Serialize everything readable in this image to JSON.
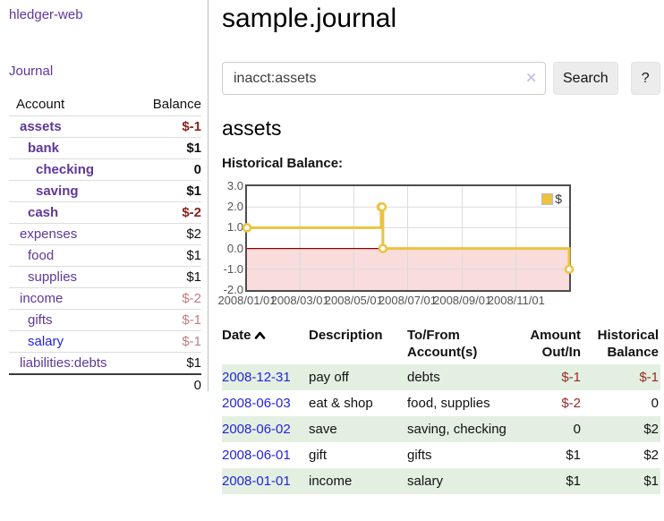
{
  "colors": {
    "link_purple": "#5f3799",
    "link_blue": "#2424dd",
    "negative_strong": "#8f1d1d",
    "negative_muted": "#bf7e7e",
    "negative": "#9b2828",
    "row_highlight_green": "#e3f0e1",
    "chart_line": "#edc240",
    "chart_negative_region": "#f9dcdc",
    "chart_zero_line": "#8b0000"
  },
  "sidebar": {
    "app_title": "hledger-web",
    "journal_link": "Journal",
    "accounts": {
      "col_account": "Account",
      "col_balance": "Balance",
      "rows": [
        {
          "name": "assets",
          "balance": "$-1"
        },
        {
          "name": "bank",
          "balance": "$1"
        },
        {
          "name": "checking",
          "balance": "0"
        },
        {
          "name": "saving",
          "balance": "$1"
        },
        {
          "name": "cash",
          "balance": "$-2"
        },
        {
          "name": "expenses",
          "balance": "$2"
        },
        {
          "name": "food",
          "balance": "$1"
        },
        {
          "name": "supplies",
          "balance": "$1"
        },
        {
          "name": "income",
          "balance": "$-2"
        },
        {
          "name": "gifts",
          "balance": "$-1"
        },
        {
          "name": "salary",
          "balance": "$-1"
        },
        {
          "name": "liabilities:debts",
          "balance": "$1"
        }
      ],
      "total": "0"
    }
  },
  "main": {
    "title": "sample.journal",
    "search": {
      "value": "inacct:assets",
      "clear_icon": "✕",
      "search_button": "Search",
      "help_button": "?"
    },
    "account_heading": "assets",
    "section_label": "Historical Balance:"
  },
  "chart_data": {
    "type": "line",
    "style": "step-after",
    "title": "Historical Balance",
    "series": [
      {
        "name": "$",
        "color": "#edc240",
        "points": [
          [
            "2008-01-01",
            1
          ],
          [
            "2008-06-01",
            2
          ],
          [
            "2008-06-02",
            2
          ],
          [
            "2008-06-03",
            0
          ],
          [
            "2008-12-31",
            -1
          ]
        ]
      }
    ],
    "x_range": [
      "2008-01-01",
      "2008-12-31"
    ],
    "ylim": [
      -2,
      3
    ],
    "yticks": [
      "3.0",
      "2.0",
      "1.0",
      "0.0",
      "-1.0",
      "-2.0"
    ],
    "xticks": [
      "2008/01/01",
      "2008/03/01",
      "2008/05/01",
      "2008/07/01",
      "2008/09/01",
      "2008/11/01"
    ],
    "grid": true,
    "legend_position": "top-right",
    "negative_region_color": "#f9dcdc",
    "zero_line_color": "#8b0000"
  },
  "register": {
    "headers": {
      "date": "Date",
      "description": "Description",
      "accounts": "To/From Account(s)",
      "amount": "Amount Out/In",
      "balance": "Historical Balance"
    },
    "rows": [
      {
        "date": "2008-12-31",
        "description": "pay off",
        "accounts": "debts",
        "amount": "$-1",
        "balance": "$-1"
      },
      {
        "date": "2008-06-03",
        "description": "eat & shop",
        "accounts": "food, supplies",
        "amount": "$-2",
        "balance": "0"
      },
      {
        "date": "2008-06-02",
        "description": "save",
        "accounts": "saving, checking",
        "amount": "0",
        "balance": "$2"
      },
      {
        "date": "2008-06-01",
        "description": "gift",
        "accounts": "gifts",
        "amount": "$1",
        "balance": "$2"
      },
      {
        "date": "2008-01-01",
        "description": "income",
        "accounts": "salary",
        "amount": "$1",
        "balance": "$1"
      }
    ]
  }
}
